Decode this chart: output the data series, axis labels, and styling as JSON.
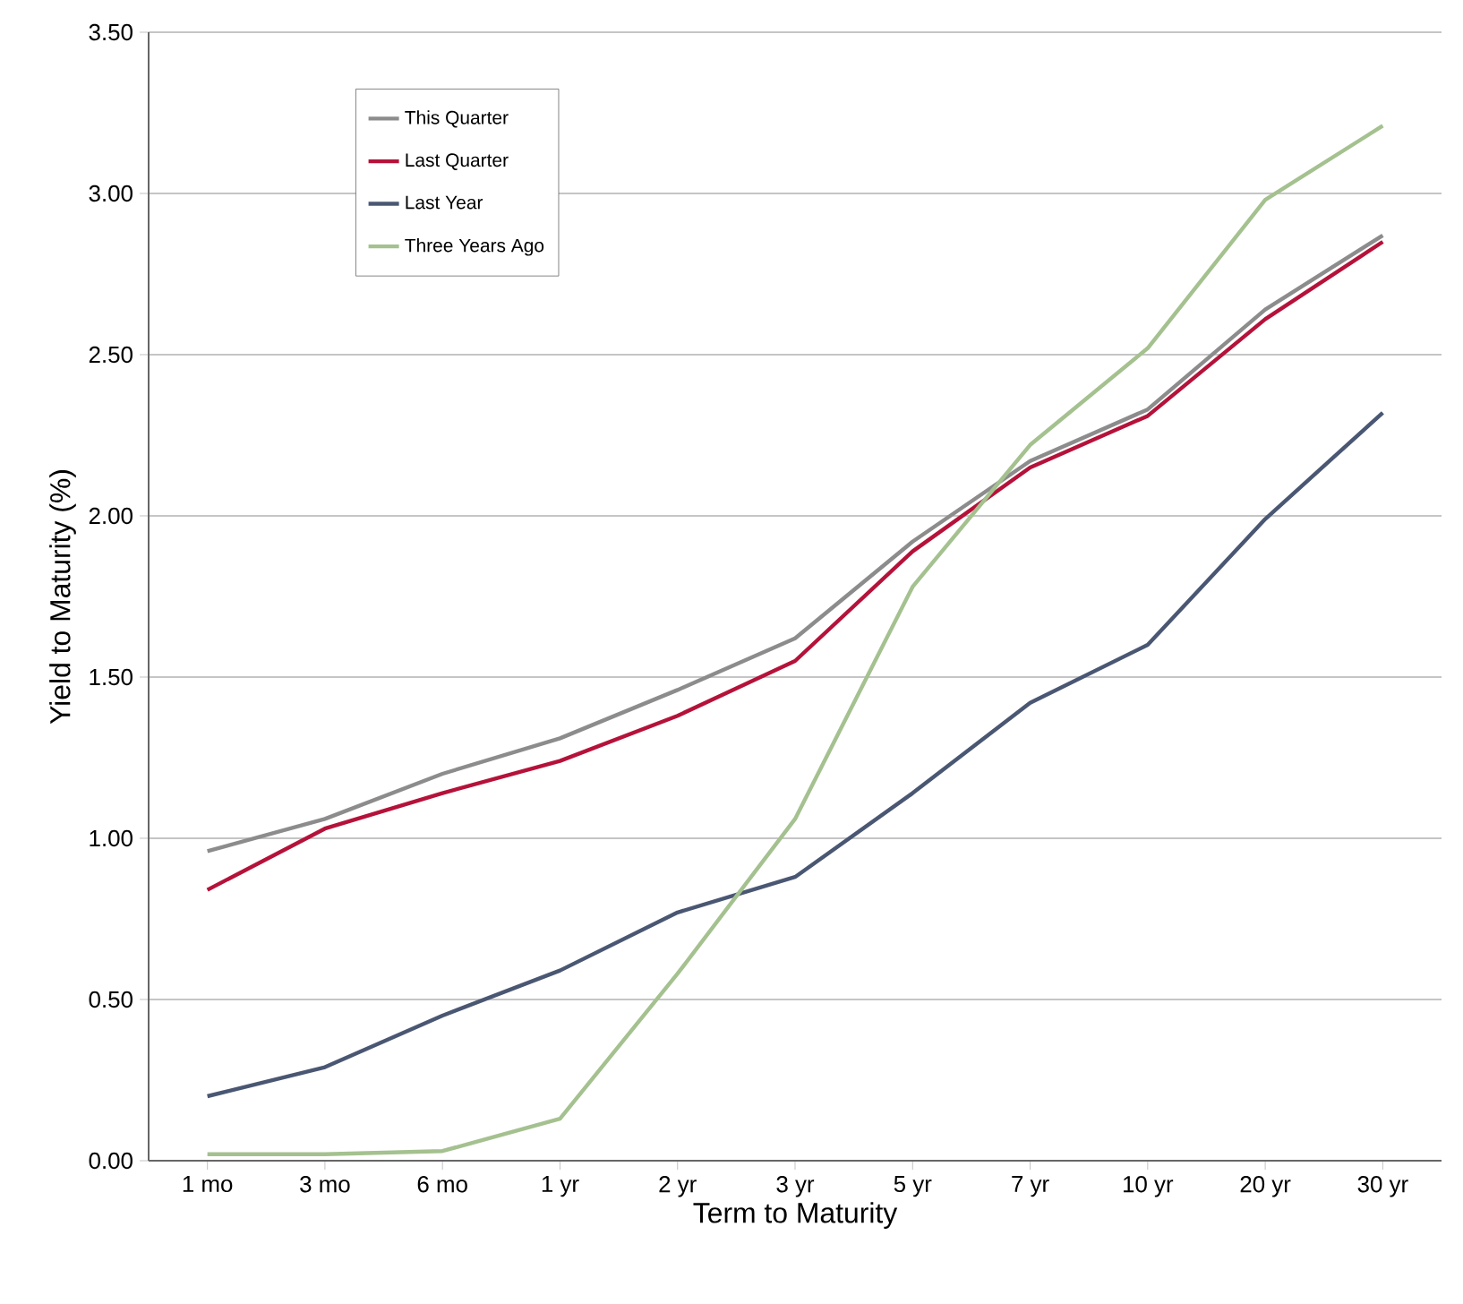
{
  "chart_data": {
    "type": "line",
    "xlabel": "Term to Maturity",
    "ylabel": "Yield to Maturity (%)",
    "categories": [
      "1 mo",
      "3 mo",
      "6 mo",
      "1 yr",
      "2 yr",
      "3 yr",
      "5 yr",
      "7 yr",
      "10 yr",
      "20 yr",
      "30 yr"
    ],
    "series": [
      {
        "name": "This Quarter",
        "color": "#8c8c8c",
        "values": [
          0.96,
          1.06,
          1.2,
          1.31,
          1.46,
          1.62,
          1.92,
          2.17,
          2.33,
          2.64,
          2.87
        ]
      },
      {
        "name": "Last Quarter",
        "color": "#b5123a",
        "values": [
          0.84,
          1.03,
          1.14,
          1.24,
          1.38,
          1.55,
          1.89,
          2.15,
          2.31,
          2.61,
          2.85
        ]
      },
      {
        "name": "Last Year",
        "color": "#4a5773",
        "values": [
          0.2,
          0.29,
          0.45,
          0.59,
          0.77,
          0.88,
          1.14,
          1.42,
          1.6,
          1.99,
          2.32
        ]
      },
      {
        "name": "Three Years Ago",
        "color": "#a4c18f",
        "values": [
          0.02,
          0.02,
          0.03,
          0.13,
          0.58,
          1.06,
          1.78,
          2.22,
          2.52,
          2.98,
          3.21
        ]
      }
    ],
    "ylim": [
      0,
      3.5
    ],
    "yticks": [
      {
        "value": 0,
        "label": "0.00"
      },
      {
        "value": 0.5,
        "label": "0.50"
      },
      {
        "value": 1,
        "label": "1.00"
      },
      {
        "value": 1.5,
        "label": "1.50"
      },
      {
        "value": 2,
        "label": "2.00"
      },
      {
        "value": 2.5,
        "label": "2.50"
      },
      {
        "value": 3,
        "label": "3.00"
      },
      {
        "value": 3.5,
        "label": "3.50"
      }
    ],
    "grid": "y",
    "legend": "top left",
    "marker": "none",
    "line_style": "solid"
  }
}
